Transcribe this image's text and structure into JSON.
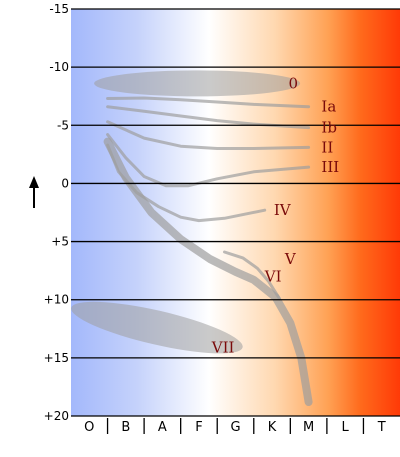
{
  "chart_data": {
    "type": "diagram",
    "y_axis": {
      "range": [
        -15,
        20
      ],
      "tick_labels": [
        "-15",
        "-10",
        "-5",
        "0",
        "+5",
        "+10",
        "+15",
        "+20"
      ],
      "direction_arrow": "up"
    },
    "x_axis": {
      "spectral_classes": [
        "O",
        "B",
        "A",
        "F",
        "G",
        "K",
        "M",
        "L",
        "T"
      ]
    },
    "luminosity_classes": [
      {
        "label": "0",
        "x": 5.95,
        "y": -8.6
      },
      {
        "label": "Ia",
        "x": 6.85,
        "y": -6.6
      },
      {
        "label": "Ib",
        "x": 6.85,
        "y": -4.8
      },
      {
        "label": "II",
        "x": 6.85,
        "y": -3.1
      },
      {
        "label": "III",
        "x": 6.85,
        "y": -1.4
      },
      {
        "label": "IV",
        "x": 5.55,
        "y": 2.3
      },
      {
        "label": "V",
        "x": 5.85,
        "y": 6.5
      },
      {
        "label": "VI",
        "x": 5.3,
        "y": 8.0
      },
      {
        "label": "VII",
        "x": 3.85,
        "y": 14.1
      }
    ],
    "colors": {
      "blue": "#a3b8fb",
      "white": "#ffffff",
      "peach": "#ffcfa4",
      "orange": "#ff9a3e",
      "red": "#ff3a07",
      "gridline": "#000000",
      "branch": "#9e9e9e",
      "label": "#7a0a0a"
    }
  }
}
